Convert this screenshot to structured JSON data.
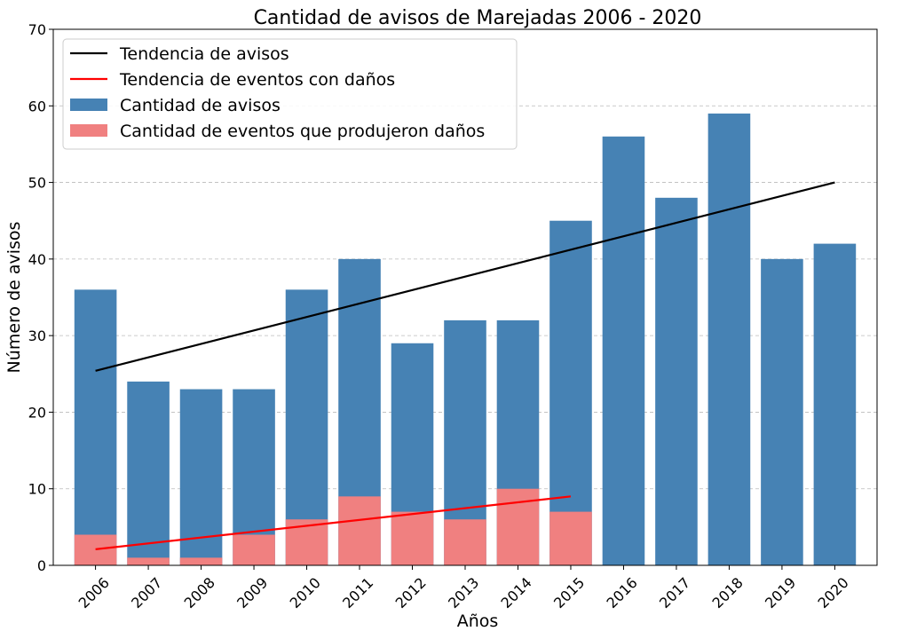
{
  "chart_data": {
    "type": "bar",
    "title": "Cantidad de avisos de Marejadas 2006 - 2020",
    "xlabel": "Años",
    "ylabel": "Número de avisos",
    "ylim": [
      0,
      70
    ],
    "yticks": [
      0,
      10,
      20,
      30,
      40,
      50,
      60,
      70
    ],
    "grid": "y-dashed",
    "legend_position": "top-left",
    "categories": [
      "2006",
      "2007",
      "2008",
      "2009",
      "2010",
      "2011",
      "2012",
      "2013",
      "2014",
      "2015",
      "2016",
      "2017",
      "2018",
      "2019",
      "2020"
    ],
    "series": [
      {
        "name": "Cantidad de avisos",
        "type": "bar",
        "color": "#4682b4",
        "values": [
          36,
          24,
          23,
          23,
          36,
          40,
          29,
          32,
          32,
          45,
          56,
          48,
          59,
          40,
          42
        ]
      },
      {
        "name": "Cantidad de eventos que produjeron daños",
        "type": "bar",
        "color": "#f08080",
        "values": [
          4,
          1,
          1,
          4,
          6,
          9,
          7,
          6,
          10,
          7,
          null,
          null,
          null,
          null,
          null
        ]
      }
    ],
    "trend_lines": [
      {
        "name": "Tendencia de avisos",
        "color": "#000000",
        "x": [
          "2006",
          "2020"
        ],
        "y": [
          25.4,
          50.0
        ]
      },
      {
        "name": "Tendencia de eventos con daños",
        "color": "#ff0000",
        "x": [
          "2006",
          "2015"
        ],
        "y": [
          2.1,
          9.0
        ]
      }
    ],
    "legend": [
      {
        "label": "Tendencia de avisos",
        "kind": "line",
        "color": "#000000"
      },
      {
        "label": "Tendencia de eventos con daños",
        "kind": "line",
        "color": "#ff0000"
      },
      {
        "label": "Cantidad de avisos",
        "kind": "patch",
        "color": "#4682b4"
      },
      {
        "label": "Cantidad de eventos que produjeron daños",
        "kind": "patch",
        "color": "#f08080"
      }
    ]
  }
}
